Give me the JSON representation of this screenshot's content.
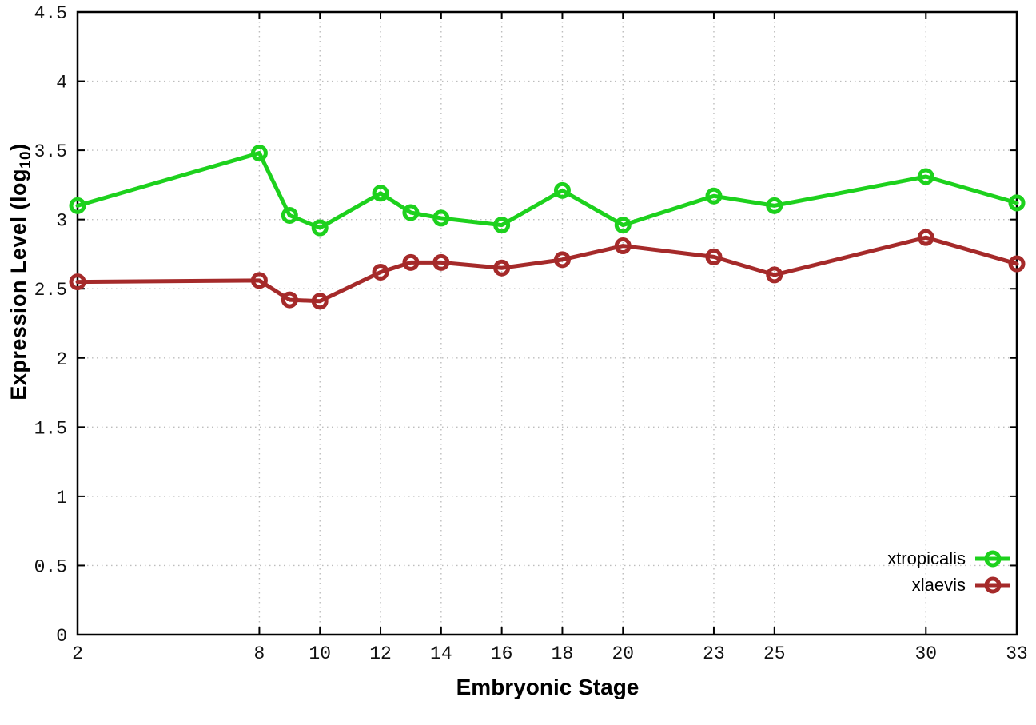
{
  "figure": {
    "background": "#ffffff",
    "border_color": "#000000",
    "grid_color": "#bdbdbd",
    "tick_label_color": "#111111"
  },
  "labels": {
    "ylabel_prefix": "Expression Level (log",
    "ylabel_sub": "10",
    "ylabel_suffix": ")"
  },
  "chart_data": {
    "type": "line",
    "title": "",
    "xlabel": "Embryonic Stage",
    "ylabel": "Expression Level (log10)",
    "xlim": [
      2,
      33
    ],
    "ylim": [
      0,
      4.5
    ],
    "grid": true,
    "legend_position": "bottom-right",
    "x_ticks": [
      2,
      8,
      10,
      12,
      14,
      16,
      18,
      20,
      23,
      25,
      30,
      33
    ],
    "x_tick_labels": [
      "2",
      "8",
      "10",
      "12",
      "14",
      "16",
      "18",
      "20",
      "23",
      "25",
      "30",
      "33"
    ],
    "y_ticks": [
      0,
      0.5,
      1,
      1.5,
      2,
      2.5,
      3,
      3.5,
      4,
      4.5
    ],
    "y_tick_labels": [
      "0",
      "0.5",
      "1",
      "1.5",
      "2",
      "2.5",
      "3",
      "3.5",
      "4",
      "4.5"
    ],
    "x": [
      2,
      8,
      9,
      10,
      12,
      13,
      14,
      16,
      18,
      20,
      23,
      25,
      30,
      33
    ],
    "series": [
      {
        "name": "xtropicalis",
        "color": "#1dd11d",
        "marker": "open-circle",
        "values": [
          3.1,
          3.48,
          3.03,
          2.94,
          3.19,
          3.05,
          3.01,
          2.96,
          3.21,
          2.96,
          3.17,
          3.1,
          3.31,
          3.12
        ]
      },
      {
        "name": "xlaevis",
        "color": "#a52a2a",
        "marker": "open-circle",
        "values": [
          2.55,
          2.56,
          2.42,
          2.41,
          2.62,
          2.69,
          2.69,
          2.65,
          2.71,
          2.81,
          2.73,
          2.6,
          2.87,
          2.68
        ]
      }
    ]
  }
}
